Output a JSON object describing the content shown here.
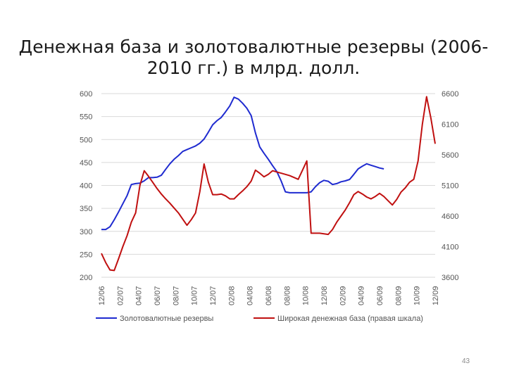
{
  "slide": {
    "title_line1": "Денежная база и золотовалютные резервы (2006-",
    "title_line2": "2010 гг.) в млрд. долл.",
    "page_number": "43"
  },
  "chart_data": {
    "type": "line",
    "categories": [
      "12/06",
      "02/07",
      "04/07",
      "06/07",
      "08/07",
      "10/07",
      "12/07",
      "02/08",
      "04/08",
      "06/08",
      "08/08",
      "10/08",
      "12/08",
      "02/09",
      "04/09",
      "06/09",
      "08/09",
      "10/09",
      "12/09"
    ],
    "left_axis": {
      "ylim": [
        200,
        600
      ],
      "ticks": [
        200,
        250,
        300,
        350,
        400,
        450,
        500,
        550,
        600
      ],
      "tick_labels": [
        "200",
        "250",
        "300",
        "350",
        "400",
        "450",
        "500",
        "550",
        "600"
      ]
    },
    "right_axis": {
      "ylim": [
        3600,
        6600
      ],
      "ticks": [
        3600,
        4100,
        4600,
        5100,
        5600,
        6100,
        6600
      ],
      "tick_labels": [
        "3600",
        "4100",
        "4600",
        "5100",
        "5600",
        "6100",
        "6600"
      ]
    },
    "grid": true,
    "legend_position": "bottom",
    "series": [
      {
        "name": "Золотовалютные резервы",
        "axis": "left",
        "color": "#1f2bd0",
        "points": [
          [
            0,
            304
          ],
          [
            0.5,
            304
          ],
          [
            1,
            310
          ],
          [
            1.5,
            325
          ],
          [
            2,
            342
          ],
          [
            2.5,
            360
          ],
          [
            3,
            378
          ],
          [
            3.5,
            402
          ],
          [
            4,
            404
          ],
          [
            4.5,
            405
          ],
          [
            5,
            410
          ],
          [
            5.5,
            417
          ],
          [
            6,
            417
          ],
          [
            6.5,
            418
          ],
          [
            7,
            422
          ],
          [
            7.5,
            435
          ],
          [
            8,
            447
          ],
          [
            8.5,
            457
          ],
          [
            9,
            465
          ],
          [
            9.5,
            474
          ],
          [
            10,
            478
          ],
          [
            10.5,
            482
          ],
          [
            11,
            486
          ],
          [
            11.5,
            492
          ],
          [
            12,
            501
          ],
          [
            12.5,
            516
          ],
          [
            13,
            532
          ],
          [
            13.5,
            541
          ],
          [
            14,
            548
          ],
          [
            14.5,
            560
          ],
          [
            15,
            573
          ],
          [
            15.5,
            592
          ],
          [
            16,
            588
          ],
          [
            16.5,
            579
          ],
          [
            17,
            568
          ],
          [
            17.5,
            552
          ],
          [
            18,
            514
          ],
          [
            18.5,
            484
          ],
          [
            19,
            470
          ],
          [
            19.5,
            457
          ],
          [
            20,
            443
          ],
          [
            20.5,
            430
          ],
          [
            21,
            410
          ],
          [
            21.5,
            386
          ],
          [
            22,
            384
          ],
          [
            22.5,
            384
          ],
          [
            23,
            384
          ],
          [
            23.5,
            384
          ],
          [
            24,
            384
          ],
          [
            24.5,
            386
          ],
          [
            25,
            397
          ],
          [
            25.5,
            406
          ],
          [
            26,
            411
          ],
          [
            26.5,
            409
          ],
          [
            27,
            402
          ],
          [
            27.5,
            404
          ],
          [
            28,
            408
          ],
          [
            28.5,
            410
          ],
          [
            29,
            413
          ],
          [
            29.5,
            424
          ],
          [
            30,
            436
          ],
          [
            30.5,
            442
          ],
          [
            31,
            447
          ],
          [
            31.5,
            444
          ],
          [
            32,
            441
          ],
          [
            32.5,
            438
          ],
          [
            33,
            436
          ]
        ]
      },
      {
        "name": "Широкая денежная база (правая шкала)",
        "axis": "right",
        "color": "#c01010",
        "points": [
          [
            0,
            3990
          ],
          [
            0.5,
            3840
          ],
          [
            1,
            3720
          ],
          [
            1.5,
            3710
          ],
          [
            2,
            3900
          ],
          [
            2.5,
            4100
          ],
          [
            3,
            4280
          ],
          [
            3.5,
            4500
          ],
          [
            4,
            4650
          ],
          [
            4.5,
            5100
          ],
          [
            5,
            5340
          ],
          [
            5.5,
            5250
          ],
          [
            6,
            5150
          ],
          [
            6.5,
            5050
          ],
          [
            7,
            4960
          ],
          [
            7.5,
            4880
          ],
          [
            8,
            4810
          ],
          [
            8.5,
            4730
          ],
          [
            9,
            4650
          ],
          [
            9.5,
            4550
          ],
          [
            10,
            4450
          ],
          [
            10.5,
            4540
          ],
          [
            11,
            4650
          ],
          [
            11.5,
            5000
          ],
          [
            12,
            5450
          ],
          [
            12.5,
            5150
          ],
          [
            13,
            4950
          ],
          [
            13.5,
            4950
          ],
          [
            14,
            4960
          ],
          [
            14.5,
            4930
          ],
          [
            15,
            4880
          ],
          [
            15.5,
            4880
          ],
          [
            16,
            4950
          ],
          [
            16.5,
            5010
          ],
          [
            17,
            5080
          ],
          [
            17.5,
            5170
          ],
          [
            18,
            5350
          ],
          [
            18.5,
            5300
          ],
          [
            19,
            5240
          ],
          [
            19.5,
            5280
          ],
          [
            20,
            5340
          ],
          [
            20.5,
            5320
          ],
          [
            21,
            5300
          ],
          [
            21.5,
            5280
          ],
          [
            22,
            5260
          ],
          [
            22.5,
            5230
          ],
          [
            23,
            5200
          ],
          [
            23.5,
            5350
          ],
          [
            24,
            5500
          ],
          [
            24.5,
            4320
          ],
          [
            25,
            4320
          ],
          [
            25.5,
            4320
          ],
          [
            26,
            4310
          ],
          [
            26.5,
            4300
          ],
          [
            27,
            4380
          ],
          [
            27.5,
            4500
          ],
          [
            28,
            4600
          ],
          [
            28.5,
            4700
          ],
          [
            29,
            4820
          ],
          [
            29.5,
            4950
          ],
          [
            30,
            5000
          ],
          [
            30.5,
            4960
          ],
          [
            31,
            4910
          ],
          [
            31.5,
            4880
          ],
          [
            32,
            4920
          ],
          [
            32.5,
            4970
          ],
          [
            33,
            4920
          ],
          [
            33.5,
            4850
          ],
          [
            34,
            4780
          ],
          [
            34.5,
            4870
          ],
          [
            35,
            4990
          ],
          [
            35.5,
            5060
          ],
          [
            36,
            5150
          ],
          [
            36.5,
            5200
          ],
          [
            37,
            5500
          ],
          [
            37.5,
            6100
          ],
          [
            38,
            6550
          ],
          [
            38.5,
            6200
          ],
          [
            39,
            5780
          ]
        ]
      }
    ]
  }
}
